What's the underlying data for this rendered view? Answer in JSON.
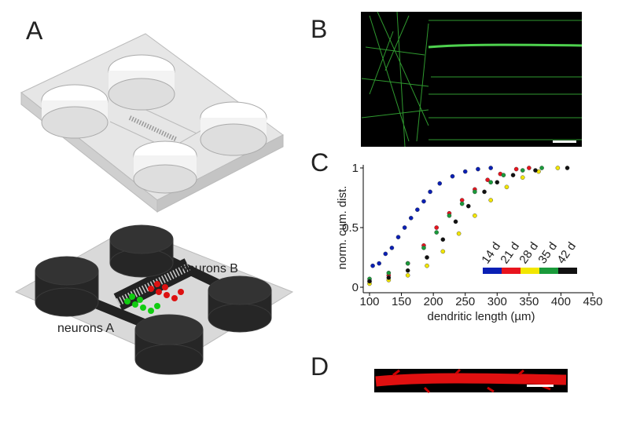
{
  "panel_labels": [
    "A",
    "B",
    "C",
    "D"
  ],
  "annotations": [
    "neurons A",
    "neurons B"
  ],
  "chart_data": {
    "type": "scatter",
    "xlabel": "dendritic length (µm)",
    "ylabel": "norm. cum. dist.",
    "xlim": [
      100,
      450
    ],
    "ylim": [
      0,
      1
    ],
    "xticks": [
      100,
      150,
      200,
      250,
      300,
      350,
      400,
      450
    ],
    "yticks": [
      0,
      0.5,
      1
    ],
    "series": [
      {
        "name": "14 d",
        "color": "#0a1fb4",
        "x": [
          105,
          115,
          125,
          135,
          145,
          155,
          165,
          175,
          185,
          195,
          210,
          230,
          250,
          270,
          290
        ],
        "values": [
          0.18,
          0.2,
          0.28,
          0.33,
          0.42,
          0.5,
          0.58,
          0.65,
          0.72,
          0.8,
          0.87,
          0.93,
          0.97,
          0.99,
          1
        ]
      },
      {
        "name": "21 d",
        "color": "#e8141e",
        "x": [
          100,
          130,
          160,
          185,
          205,
          225,
          245,
          265,
          285,
          305,
          330,
          350
        ],
        "values": [
          0.05,
          0.1,
          0.2,
          0.35,
          0.5,
          0.62,
          0.73,
          0.82,
          0.9,
          0.95,
          0.99,
          1
        ]
      },
      {
        "name": "28 d",
        "color": "#f2e600",
        "x": [
          100,
          130,
          160,
          190,
          215,
          240,
          265,
          290,
          315,
          340,
          365,
          395
        ],
        "values": [
          0.03,
          0.06,
          0.1,
          0.18,
          0.3,
          0.45,
          0.6,
          0.73,
          0.84,
          0.92,
          0.97,
          1
        ]
      },
      {
        "name": "35 d",
        "color": "#1a9a3a",
        "x": [
          100,
          130,
          160,
          185,
          205,
          225,
          245,
          265,
          290,
          310,
          340,
          370
        ],
        "values": [
          0.07,
          0.12,
          0.2,
          0.33,
          0.46,
          0.6,
          0.7,
          0.8,
          0.88,
          0.94,
          0.98,
          1
        ]
      },
      {
        "name": "42 d",
        "color": "#111111",
        "x": [
          100,
          130,
          160,
          190,
          215,
          235,
          255,
          280,
          300,
          325,
          360,
          410
        ],
        "values": [
          0.05,
          0.08,
          0.14,
          0.25,
          0.4,
          0.55,
          0.68,
          0.8,
          0.88,
          0.94,
          0.98,
          1
        ]
      }
    ]
  }
}
